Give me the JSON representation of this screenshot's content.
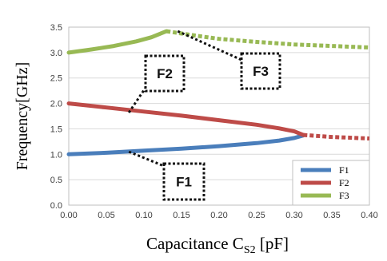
{
  "chart_data": {
    "type": "line",
    "xlabel": "Capacitance C",
    "xlabel_sub": "S2",
    "xlabel_unit": " [pF]",
    "ylabel": "Frequency[GHz]",
    "xlim": [
      0,
      0.4
    ],
    "ylim": [
      0,
      3.5
    ],
    "xticks": [
      "0.00",
      "0.05",
      "0.10",
      "0.15",
      "0.20",
      "0.25",
      "0.30",
      "0.35",
      "0.40"
    ],
    "yticks": [
      "0.0",
      "0.5",
      "1.0",
      "1.5",
      "2.0",
      "2.5",
      "3.0",
      "3.5"
    ],
    "grid": true,
    "legend_position": "bottom-right",
    "series": [
      {
        "name": "F1",
        "color": "#4a7ebb",
        "solid": [
          [
            0.0,
            1.0
          ],
          [
            0.05,
            1.03
          ],
          [
            0.1,
            1.07
          ],
          [
            0.15,
            1.11
          ],
          [
            0.2,
            1.16
          ],
          [
            0.25,
            1.22
          ],
          [
            0.28,
            1.27
          ],
          [
            0.3,
            1.32
          ],
          [
            0.312,
            1.37
          ]
        ],
        "dashed": []
      },
      {
        "name": "F2",
        "color": "#be4b48",
        "solid": [
          [
            0.0,
            2.0
          ],
          [
            0.05,
            1.92
          ],
          [
            0.1,
            1.84
          ],
          [
            0.15,
            1.76
          ],
          [
            0.2,
            1.67
          ],
          [
            0.25,
            1.58
          ],
          [
            0.28,
            1.51
          ],
          [
            0.3,
            1.45
          ],
          [
            0.312,
            1.38
          ]
        ],
        "dashed": [
          [
            0.312,
            1.38
          ],
          [
            0.35,
            1.34
          ],
          [
            0.4,
            1.31
          ]
        ]
      },
      {
        "name": "F3",
        "color": "#98b954",
        "solid": [
          [
            0.0,
            3.0
          ],
          [
            0.03,
            3.06
          ],
          [
            0.06,
            3.13
          ],
          [
            0.09,
            3.22
          ],
          [
            0.11,
            3.3
          ],
          [
            0.13,
            3.42
          ]
        ],
        "dashed": [
          [
            0.13,
            3.42
          ],
          [
            0.17,
            3.33
          ],
          [
            0.2,
            3.27
          ],
          [
            0.25,
            3.21
          ],
          [
            0.3,
            3.16
          ],
          [
            0.35,
            3.13
          ],
          [
            0.4,
            3.1
          ]
        ]
      }
    ],
    "callouts": [
      {
        "label": "F2",
        "target": [
          0.08,
          1.82
        ]
      },
      {
        "label": "F3",
        "target": [
          0.145,
          3.42
        ]
      },
      {
        "label": "F1",
        "target": [
          0.08,
          1.05
        ]
      }
    ]
  }
}
